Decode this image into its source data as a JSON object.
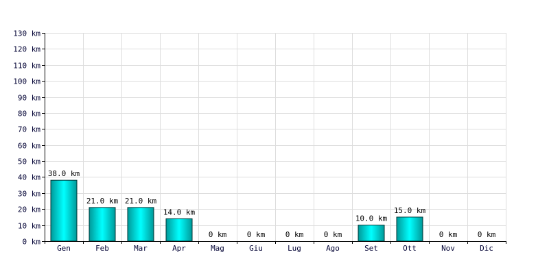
{
  "chart_data": {
    "type": "bar",
    "categories": [
      "Gen",
      "Feb",
      "Mar",
      "Apr",
      "Mag",
      "Giu",
      "Lug",
      "Ago",
      "Set",
      "Ott",
      "Nov",
      "Dic"
    ],
    "values": [
      38.0,
      21.0,
      21.0,
      14.0,
      0,
      0,
      0,
      0,
      10.0,
      15.0,
      0,
      0
    ],
    "value_labels": [
      "38.0 km",
      "21.0 km",
      "21.0 km",
      "14.0 km",
      "0 km",
      "0 km",
      "0 km",
      "0 km",
      "10.0 km",
      "15.0 km",
      "0 km",
      "0 km"
    ],
    "y_ticks": [
      0,
      10,
      20,
      30,
      40,
      50,
      60,
      70,
      80,
      90,
      100,
      110,
      120,
      130
    ],
    "y_tick_labels": [
      "0 km",
      "10 km",
      "20 km",
      "30 km",
      "40 km",
      "50 km",
      "60 km",
      "70 km",
      "80 km",
      "90 km",
      "100 km",
      "110 km",
      "120 km",
      "130 km"
    ],
    "ylim": [
      0,
      130
    ],
    "title": "",
    "xlabel": "",
    "ylabel": "",
    "grid": true,
    "legend": "none",
    "colors": {
      "bar_top": "#00ffff",
      "bar_bottom": "#009999",
      "bar_edge": "#003333",
      "grid": "#dddddd",
      "axis": "#000000",
      "tick_text": "#000033"
    }
  }
}
